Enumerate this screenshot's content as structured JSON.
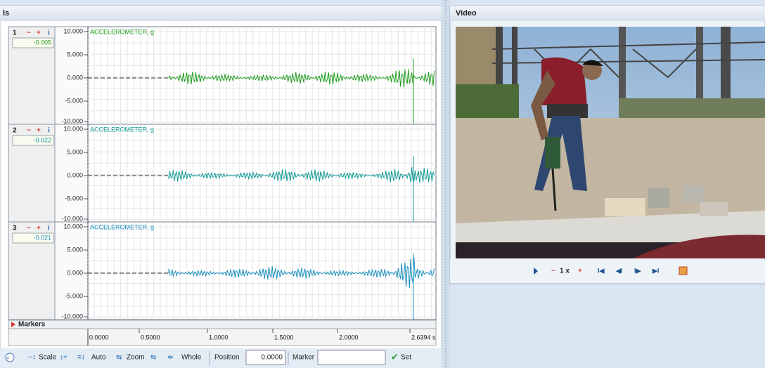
{
  "left_panel": {
    "title": "ls",
    "channels": [
      {
        "number": "1",
        "value": "-0.005",
        "label": "ACCELEROMETER, g",
        "color": "#1f9e1f"
      },
      {
        "number": "2",
        "value": "-0.022",
        "label": "ACCELEROMETER, g",
        "color": "#109a96"
      },
      {
        "number": "3",
        "value": "-0.021",
        "label": "ACCELEROMETER, g",
        "color": "#1a8fc0"
      }
    ],
    "y_ticks": [
      "10.000",
      "5.000",
      "0.000",
      "-5.000",
      "-10.000"
    ],
    "x_ticks": [
      "0.0000",
      "0.5000",
      "1.0000",
      "1.5000",
      "2.0000",
      "2.6394 s"
    ],
    "markers": "Markers",
    "toolbar": {
      "scale": "Scale",
      "auto": "Auto",
      "zoom": "Zoom",
      "whole": "Whole",
      "position_label": "Position",
      "position_value": "0.0000",
      "marker_label": "Marker",
      "set": "Set"
    }
  },
  "video_panel": {
    "title": "Video",
    "speed": "1 x"
  }
}
